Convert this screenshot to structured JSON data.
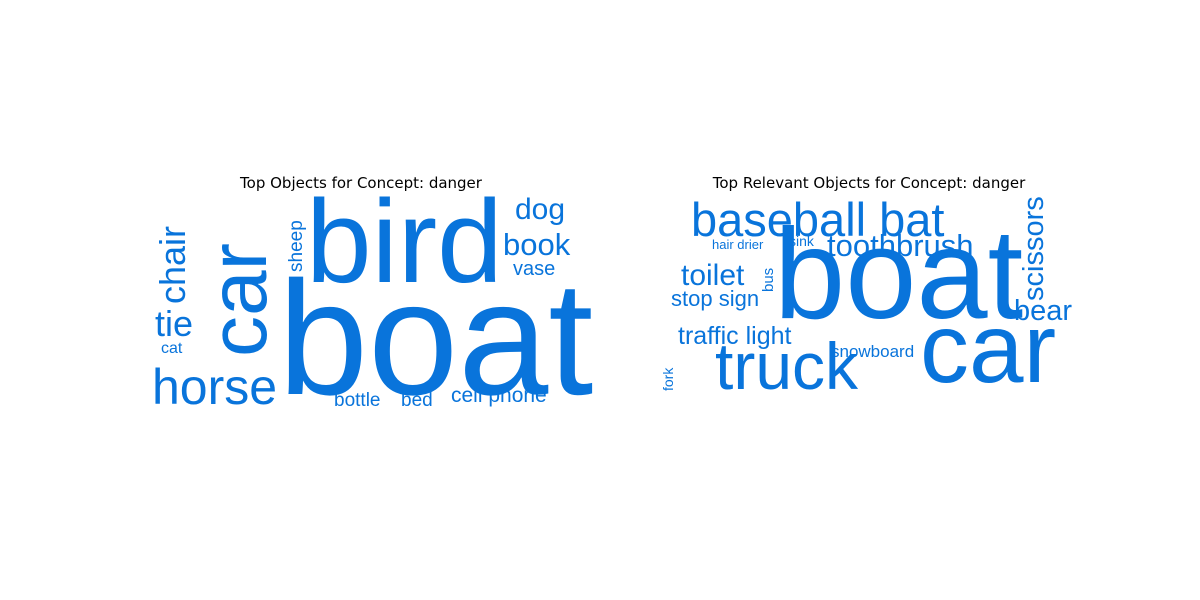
{
  "colors": {
    "word": "#0974db",
    "title": "#000000",
    "background": "#ffffff"
  },
  "left_cloud": {
    "title": "Top Objects for Concept: danger",
    "words": {
      "boat": "boat",
      "bird": "bird",
      "car": "car",
      "horse": "horse",
      "chair": "chair",
      "tie": "tie",
      "cat": "cat",
      "sheep": "sheep",
      "dog": "dog",
      "book": "book",
      "vase": "vase",
      "cell_phone": "cell phone",
      "bottle": "bottle",
      "bed": "bed"
    }
  },
  "right_cloud": {
    "title": "Top Relevant Objects for Concept: danger",
    "words": {
      "boat": "boat",
      "car": "car",
      "truck": "truck",
      "baseball_bat": "baseball bat",
      "toothbrush": "toothbrush",
      "scissors": "scissors",
      "bear": "bear",
      "toilet": "toilet",
      "stop_sign": "stop sign",
      "traffic_light": "traffic light",
      "snowboard": "snowboard",
      "hair_drier": "hair drier",
      "sink": "sink",
      "bus": "bus",
      "fork": "fork"
    }
  }
}
